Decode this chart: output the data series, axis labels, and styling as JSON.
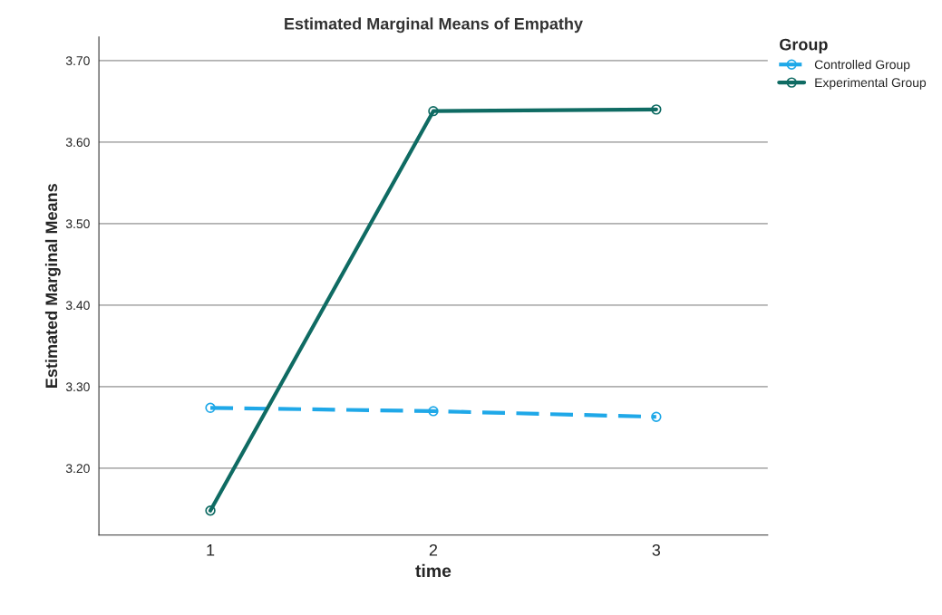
{
  "chart_data": {
    "type": "line",
    "title": "Estimated Marginal Means of Empathy",
    "xlabel": "time",
    "ylabel": "Estimated Marginal Means",
    "legend_title": "Group",
    "categories": [
      "1",
      "2",
      "3"
    ],
    "series": [
      {
        "name": "Controlled Group",
        "color": "#1fa8e8",
        "line_style": "dashed",
        "values": [
          3.274,
          3.27,
          3.263
        ]
      },
      {
        "name": "Experimental Group",
        "color": "#0f6b63",
        "line_style": "solid",
        "values": [
          3.148,
          3.638,
          3.64
        ]
      }
    ],
    "ylim": [
      3.118,
      3.729
    ],
    "yticks": [
      {
        "value": 3.2,
        "label": "3.20"
      },
      {
        "value": 3.3,
        "label": "3.30"
      },
      {
        "value": 3.4,
        "label": "3.40"
      },
      {
        "value": 3.5,
        "label": "3.50"
      },
      {
        "value": 3.6,
        "label": "3.60"
      },
      {
        "value": 3.7,
        "label": "3.70"
      }
    ],
    "grid": "y",
    "legend": "top right",
    "marker": "circle"
  }
}
